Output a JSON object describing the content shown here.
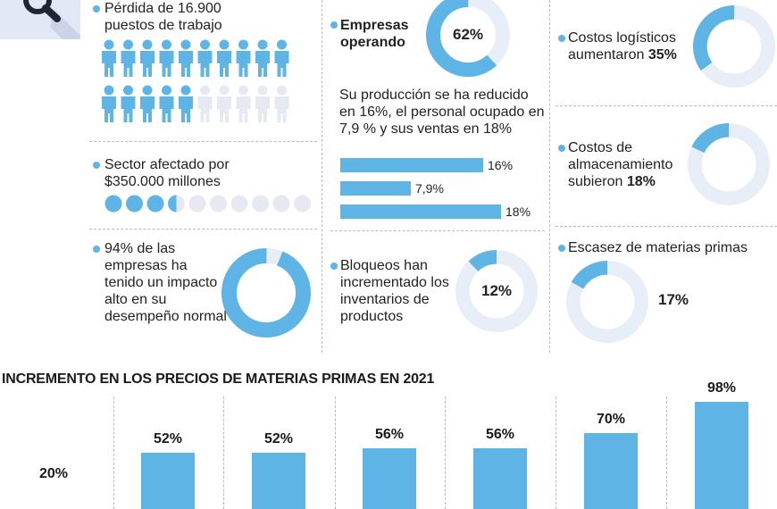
{
  "stats": {
    "jobs_text": "Pérdida de 16.900 puestos de trabajo",
    "jobs_icons": {
      "filled": 15,
      "total": 20
    },
    "sector_text": "Sector afectado por $350.000 millones",
    "sector_dots": {
      "filled": 3.5,
      "total": 10
    },
    "impact_text": "94% de las empresas ha tenido un impacto alto en su desempeño normal",
    "impact_value": 94,
    "operating_label": "Empresas operando",
    "operating_value": 62,
    "operating_value_label": "62%",
    "production_text": "Su producción se ha reducido en 16%, el personal ocupado en 7,9 % y sus ventas en 18%",
    "production_bars": [
      {
        "value": 16,
        "label": "16%"
      },
      {
        "value": 7.9,
        "label": "7,9%"
      },
      {
        "value": 18,
        "label": "18%"
      }
    ],
    "blockades_text": "Bloqueos han incrementado los inventarios de productos",
    "blockades_value": 12,
    "blockades_value_label": "12%",
    "logistics_text": "Costos logísticos aumentaron",
    "logistics_bold": "35%",
    "logistics_value": 35,
    "storage_text": "Costos de almacenamiento subieron",
    "storage_bold": "18%",
    "storage_value": 18,
    "shortage_text": "Escasez de materias primas",
    "shortage_value": 17,
    "shortage_value_label": "17%"
  },
  "colors": {
    "accent": "#5fb4e6",
    "track": "#e8eef8",
    "gray_icon": "#e6e9f2"
  },
  "icons": {
    "header": "magnifier-icon"
  },
  "chart_data": {
    "type": "bar",
    "title": "INCREMENTO EN LOS PRECIOS DE MATERIAS PRIMAS EN 2021",
    "categories": [
      "",
      "",
      "",
      "",
      "",
      "",
      ""
    ],
    "values": [
      20,
      52,
      52,
      56,
      56,
      70,
      98
    ],
    "value_labels": [
      "20%",
      "52%",
      "52%",
      "56%",
      "56%",
      "70%",
      "98%"
    ],
    "ylim": [
      0,
      100
    ]
  }
}
